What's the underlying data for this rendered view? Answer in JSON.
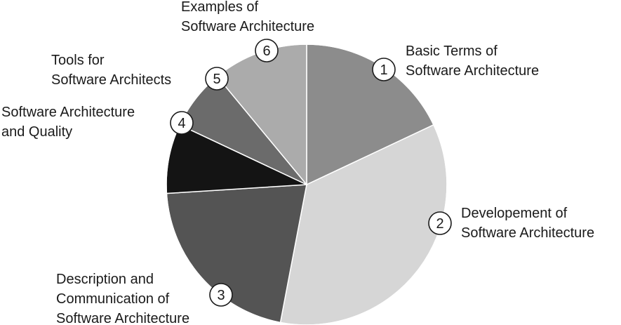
{
  "chart_data": {
    "type": "pie",
    "title": "",
    "slices": [
      {
        "number": "1",
        "label_lines": [
          "Basic Terms of",
          "Software Architecture"
        ],
        "value": 18,
        "color": "#8c8c8c"
      },
      {
        "number": "2",
        "label_lines": [
          "Developement of",
          "Software Architecture"
        ],
        "value": 35,
        "color": "#d6d6d6"
      },
      {
        "number": "3",
        "label_lines": [
          "Description and",
          "Communication of",
          "Software Architecture"
        ],
        "value": 21,
        "color": "#545454"
      },
      {
        "number": "4",
        "label_lines": [
          "Software Architecture",
          "and Quality"
        ],
        "value": 8,
        "color": "#141414"
      },
      {
        "number": "5",
        "label_lines": [
          "Tools for",
          "Software Architects"
        ],
        "value": 7,
        "color": "#6b6b6b"
      },
      {
        "number": "6",
        "label_lines": [
          "Examples of",
          "Software Architecture"
        ],
        "value": 11,
        "color": "#ababab"
      }
    ],
    "start_position": "12 o'clock",
    "direction": "clockwise"
  }
}
